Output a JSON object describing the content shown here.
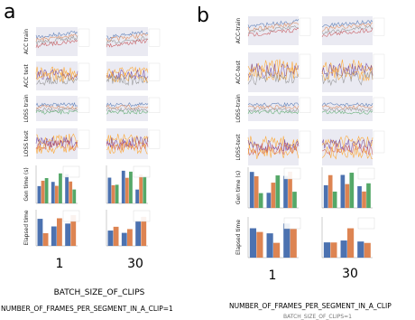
{
  "panels": [
    {
      "letter": "a",
      "row_labels": [
        "ACC train",
        "ACC test",
        "LOSS train",
        "LOSS test",
        "Gen time (s)",
        "Elapsed time"
      ],
      "column_labels": [
        "1",
        "30"
      ],
      "x_label": "BATCH_SIZE_OF_CLIPS",
      "caption": "NUMBER_OF_FRAMES_PER_SEGMENT_IN_A_CLIP=1"
    },
    {
      "letter": "b",
      "row_labels": [
        "ACC-train",
        "ACC-test",
        "LOSS-train",
        "LOSS-test",
        "Gen time (s)",
        "Elapsed time"
      ],
      "column_labels": [
        "1",
        "30"
      ],
      "x_label": "NUMBER_OF_FRAMES_PER_SEGMENT_IN_A_CLIP",
      "caption": "BATCH_SIZE_OF_CLIPS=1"
    }
  ]
}
